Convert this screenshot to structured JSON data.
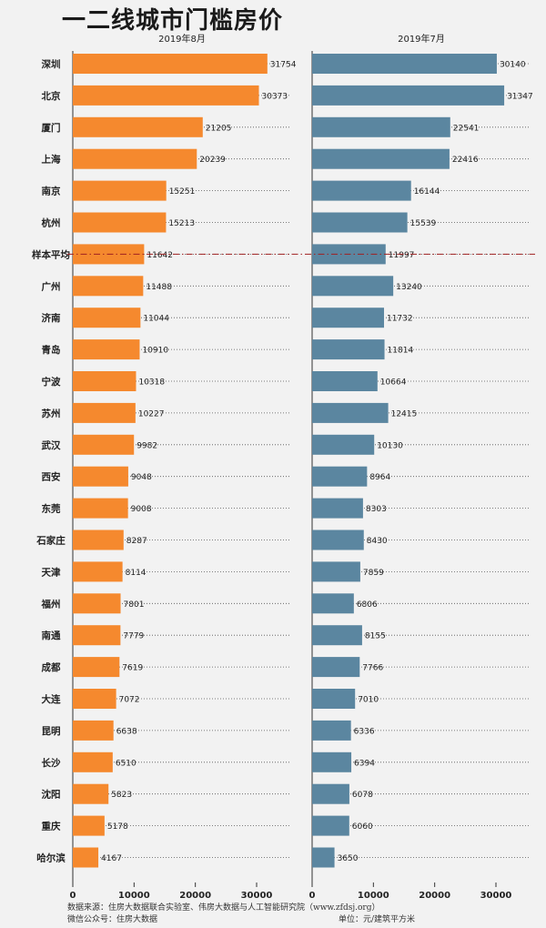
{
  "title": "一二线城市门槛房价",
  "chart_data": {
    "type": "bar",
    "orientation": "horizontal",
    "categories": [
      "深圳",
      "北京",
      "厦门",
      "上海",
      "南京",
      "杭州",
      "样本平均",
      "广州",
      "济南",
      "青岛",
      "宁波",
      "苏州",
      "武汉",
      "西安",
      "东莞",
      "石家庄",
      "天津",
      "福州",
      "南通",
      "成都",
      "大连",
      "昆明",
      "长沙",
      "沈阳",
      "重庆",
      "哈尔滨"
    ],
    "series": [
      {
        "name": "2019年8月",
        "color": "#f5892e",
        "values": [
          31754,
          30373,
          21205,
          20239,
          15251,
          15213,
          11642,
          11488,
          11044,
          10910,
          10318,
          10227,
          9982,
          9048,
          9008,
          8287,
          8114,
          7801,
          7779,
          7619,
          7072,
          6638,
          6510,
          5823,
          5178,
          4167
        ]
      },
      {
        "name": "2019年7月",
        "color": "#5b86a0",
        "values": [
          30140,
          31347,
          22541,
          22416,
          16144,
          15539,
          11997,
          13240,
          11732,
          11814,
          10664,
          12415,
          10130,
          8964,
          8303,
          8430,
          7859,
          6806,
          8155,
          7766,
          7010,
          6336,
          6394,
          6078,
          6060,
          3650
        ]
      }
    ],
    "xlim": [
      0,
      35000
    ],
    "xticks": [
      0,
      10000,
      20000,
      30000
    ],
    "reference_row": "样本平均",
    "reference_line_color": "#a02020"
  },
  "footer": {
    "source": "数据来源：住房大数据联合实验室、伟房大数据与人工智能研究院（www.zfdsj.org）",
    "wechat": "微信公众号：住房大数据",
    "unit": "单位：元/建筑平方米"
  }
}
